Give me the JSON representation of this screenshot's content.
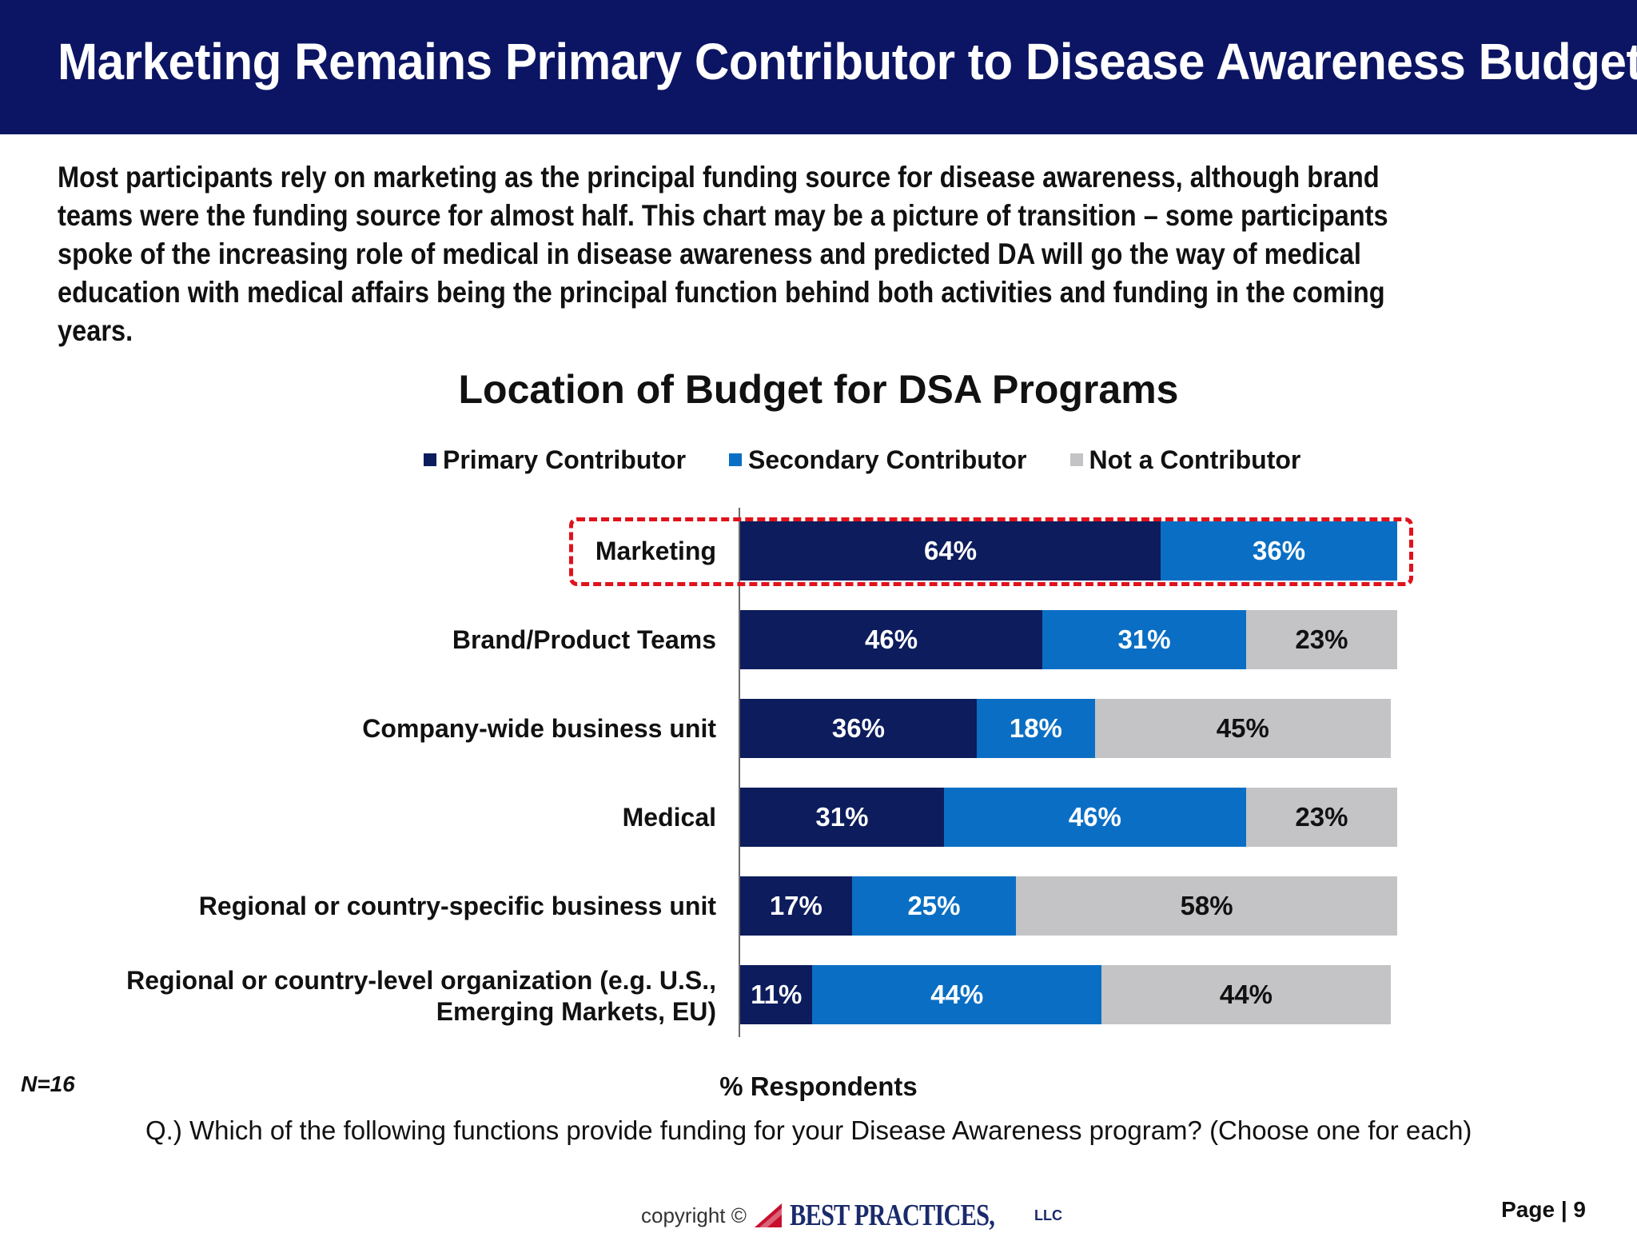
{
  "header": {
    "title": "Marketing Remains Primary Contributor to Disease Awareness Budget"
  },
  "intro": {
    "text": "Most participants rely on marketing as the principal funding source for disease awareness, although brand teams were the funding source for almost half. This chart may be a picture of transition – some participants spoke of the increasing role of medical in disease awareness and predicted DA will go the way of medical education with medical affairs being the principal function behind both activities and funding in the coming years."
  },
  "chart_data": {
    "type": "bar",
    "orientation": "horizontal",
    "stacked": true,
    "title": "Location of Budget for DSA Programs",
    "xlabel": "% Respondents",
    "ylabel": "",
    "xlim": [
      0,
      100
    ],
    "legend_position": "top",
    "grid": false,
    "categories": [
      "Marketing",
      "Brand/Product Teams",
      "Company-wide business unit",
      "Medical",
      "Regional or country-specific business unit",
      "Regional or country-level organization (e.g. U.S., Emerging Markets, EU)"
    ],
    "series": [
      {
        "name": "Primary Contributor",
        "color": "#0c1c5c",
        "values": [
          64,
          46,
          36,
          31,
          17,
          11
        ]
      },
      {
        "name": "Secondary Contributor",
        "color": "#0a6fc4",
        "values": [
          36,
          31,
          18,
          46,
          25,
          44
        ]
      },
      {
        "name": "Not a Contributor",
        "color": "#c4c3c6",
        "values": [
          0,
          23,
          45,
          23,
          58,
          44
        ]
      }
    ],
    "highlighted_category": "Marketing"
  },
  "footer": {
    "n_label": "N=16",
    "question": "Q.)  Which of the following functions provide funding for your Disease Awareness program? (Choose one for each)",
    "copyright": "copyright ©",
    "logo_text": "BEST PRACTICES,",
    "logo_suffix": "LLC",
    "page": "Page | 9"
  }
}
